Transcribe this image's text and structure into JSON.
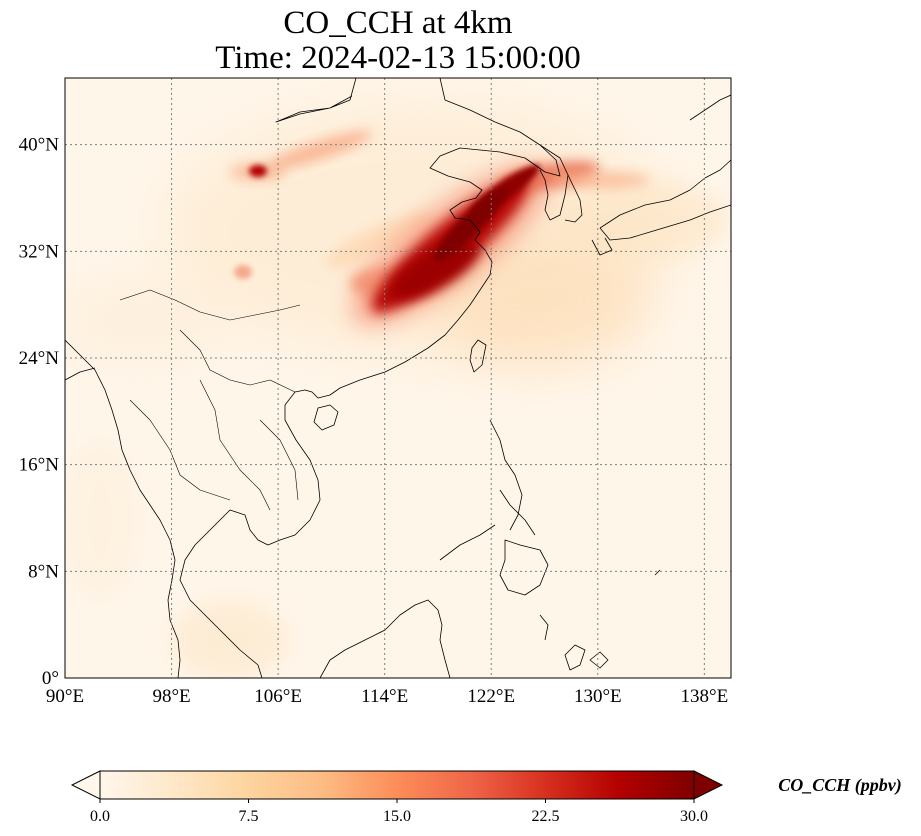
{
  "title": {
    "line1": "CO_CCH at 4km",
    "line2": "Time: 2024-02-13 15:00:00"
  },
  "map": {
    "projection": "PlateCarree",
    "extent": {
      "lon_min": 90,
      "lon_max": 140,
      "lat_min": 0,
      "lat_max": 45
    },
    "gridlines": "dotted",
    "xticks": [
      {
        "lon": 90,
        "label": "90°E"
      },
      {
        "lon": 98,
        "label": "98°E"
      },
      {
        "lon": 106,
        "label": "106°E"
      },
      {
        "lon": 114,
        "label": "114°E"
      },
      {
        "lon": 122,
        "label": "122°E"
      },
      {
        "lon": 130,
        "label": "130°E"
      },
      {
        "lon": 138,
        "label": "138°E"
      }
    ],
    "yticks": [
      {
        "lat": 0,
        "label": "0°"
      },
      {
        "lat": 8,
        "label": "8°N"
      },
      {
        "lat": 16,
        "label": "16°N"
      },
      {
        "lat": 24,
        "label": "24°N"
      },
      {
        "lat": 32,
        "label": "32°N"
      },
      {
        "lat": 40,
        "label": "40°N"
      }
    ],
    "colormap": "OrRd",
    "background_color": "#fff6ea",
    "coastline_color": "#000000"
  },
  "colorbar": {
    "label": "CO_CCH (ppbv)",
    "min": 0.0,
    "max": 30.0,
    "extend": "both",
    "ticks": [
      {
        "value": 0.0,
        "label": "0.0"
      },
      {
        "value": 7.5,
        "label": "7.5"
      },
      {
        "value": 15.0,
        "label": "15.0"
      },
      {
        "value": 22.5,
        "label": "22.5"
      },
      {
        "value": 30.0,
        "label": "30.0"
      }
    ],
    "colors": [
      "#fff7ec",
      "#fee8c8",
      "#fdd49e",
      "#fdbb84",
      "#fc8d59",
      "#ef6548",
      "#d7301f",
      "#b30000",
      "#7f0000"
    ]
  }
}
